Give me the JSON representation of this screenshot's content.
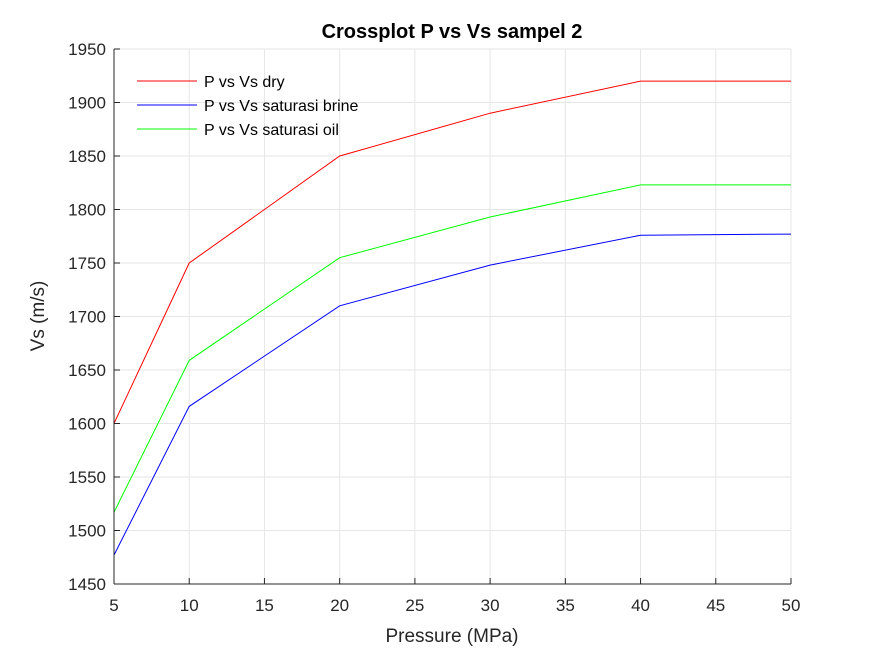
{
  "chart_data": {
    "type": "line",
    "title": "Crossplot P vs Vs sampel 2",
    "xlabel": "Pressure (MPa)",
    "ylabel": "Vs (m/s)",
    "xlim": [
      5,
      50
    ],
    "ylim": [
      1450,
      1950
    ],
    "xticks": [
      5,
      10,
      15,
      20,
      25,
      30,
      35,
      40,
      45,
      50
    ],
    "yticks": [
      1450,
      1500,
      1550,
      1600,
      1650,
      1700,
      1750,
      1800,
      1850,
      1900,
      1950
    ],
    "grid": true,
    "legend_position": "top-left",
    "x": [
      5,
      10,
      20,
      30,
      40,
      50
    ],
    "series": [
      {
        "name": "P vs Vs dry",
        "color": "#ff0000",
        "values": [
          1600,
          1750,
          1850,
          1890,
          1920,
          1920
        ]
      },
      {
        "name": "P vs Vs saturasi brine",
        "color": "#0000ff",
        "values": [
          1477,
          1616,
          1710,
          1748,
          1776,
          1777
        ]
      },
      {
        "name": "P vs Vs saturasi oil",
        "color": "#00ff00",
        "values": [
          1517,
          1659,
          1755,
          1793,
          1823,
          1823
        ]
      }
    ]
  }
}
